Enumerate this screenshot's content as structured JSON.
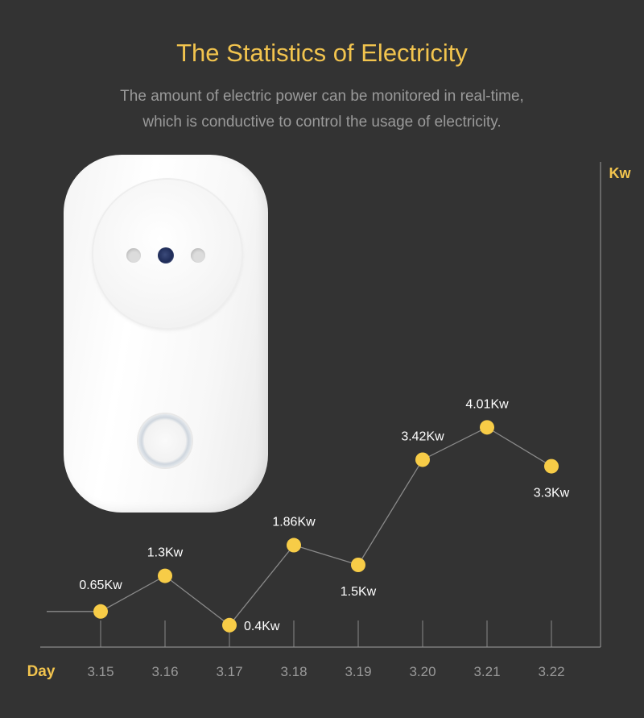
{
  "header": {
    "title": "The Statistics of Electricity",
    "subtitle_line1": "The amount of electric power can be monitored in real-time,",
    "subtitle_line2": "which is conductive to control the usage of electricity."
  },
  "product": {
    "icon": "smart-plug-image",
    "color": "#ffffff"
  },
  "chart_data": {
    "type": "line",
    "xlabel": "Day",
    "ylabel": "Kw",
    "categories": [
      "3.15",
      "3.16",
      "3.17",
      "3.18",
      "3.19",
      "3.20",
      "3.21",
      "3.22"
    ],
    "values": [
      0.65,
      1.3,
      0.4,
      1.86,
      1.5,
      3.42,
      4.01,
      3.3
    ],
    "data_labels": [
      "0.65Kw",
      "1.3Kw",
      "0.4Kw",
      "1.86Kw",
      "1.5Kw",
      "3.42Kw",
      "4.01Kw",
      "3.3Kw"
    ],
    "ylim": [
      0,
      5
    ],
    "grid": false,
    "legend": "none",
    "colors": {
      "point": "#f7cc47",
      "line": "#8a8a8a",
      "axis": "#8a8a8a",
      "label": "#ffffff",
      "axis_title": "#f2c44e",
      "tick": "#9a9a9a"
    }
  }
}
